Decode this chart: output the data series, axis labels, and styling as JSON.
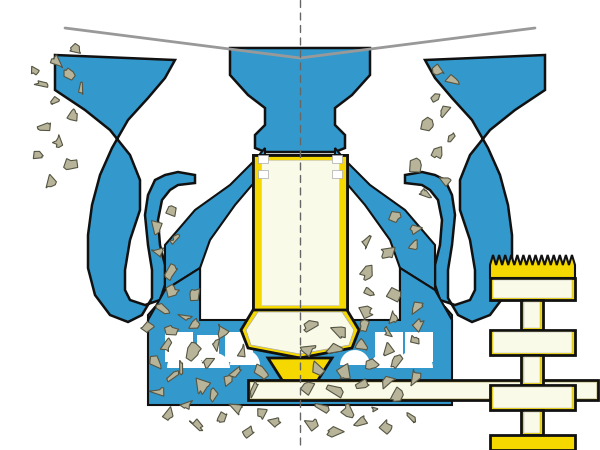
{
  "bg": "#ffffff",
  "blue": "#3399cc",
  "blue2": "#2288bb",
  "yellow": "#f5d800",
  "cream": "#fafae8",
  "rock_fill": "#b8b49a",
  "rock_edge": "#555544",
  "outline": "#111111",
  "dash_color": "#666666",
  "rod_color": "#888888"
}
